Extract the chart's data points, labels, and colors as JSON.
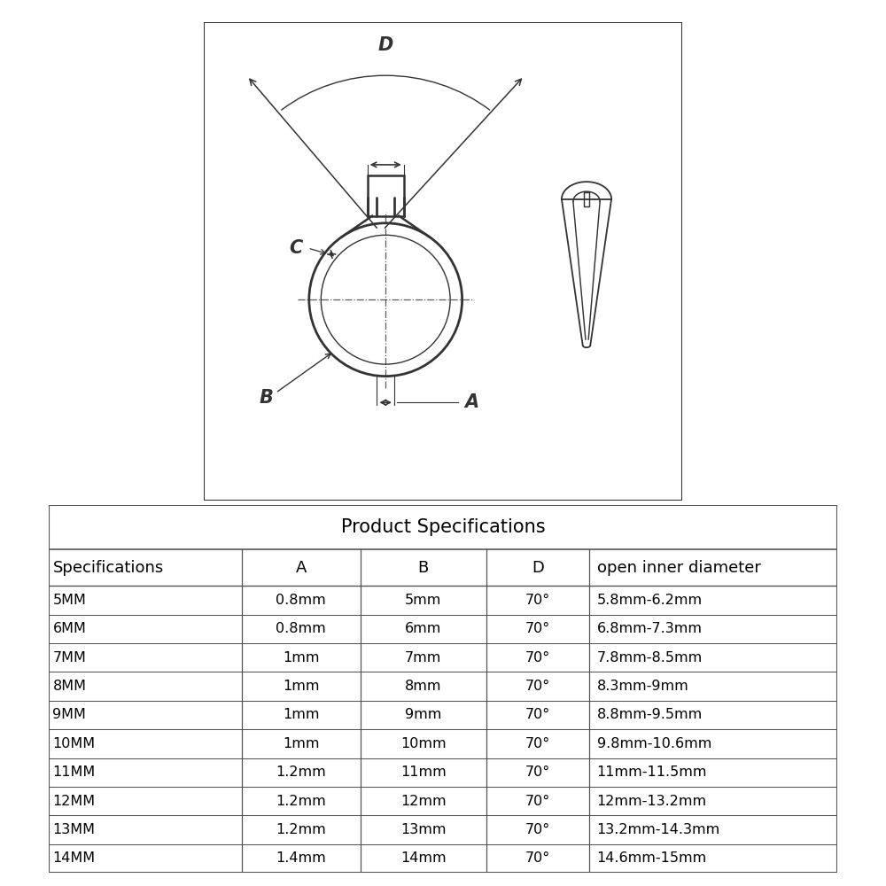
{
  "bg_color": "#ffffff",
  "diagram_bg": "#d8d8d8",
  "line_color": "#333333",
  "table_line_color": "#555555",
  "title": "Product Specifications",
  "headers": [
    "Specifications",
    "A",
    "B",
    "D",
    "open inner diameter"
  ],
  "col_align": [
    "left",
    "center",
    "center",
    "center",
    "left"
  ],
  "rows": [
    [
      "5MM",
      "0.8mm",
      "5mm",
      "70°",
      "5.8mm-6.2mm"
    ],
    [
      "6MM",
      "0.8mm",
      "6mm",
      "70°",
      "6.8mm-7.3mm"
    ],
    [
      "7MM",
      "1mm",
      "7mm",
      "70°",
      "7.8mm-8.5mm"
    ],
    [
      "8MM",
      "1mm",
      "8mm",
      "70°",
      "8.3mm-9mm"
    ],
    [
      "9MM",
      "1mm",
      "9mm",
      "70°",
      "8.8mm-9.5mm"
    ],
    [
      "10MM",
      "1mm",
      "10mm",
      "70°",
      "9.8mm-10.6mm"
    ],
    [
      "11MM",
      "1.2mm",
      "11mm",
      "70°",
      "11mm-11.5mm"
    ],
    [
      "12MM",
      "1.2mm",
      "12mm",
      "70°",
      "12mm-13.2mm"
    ],
    [
      "13MM",
      "1.2mm",
      "13mm",
      "70°",
      "13.2mm-14.3mm"
    ],
    [
      "14MM",
      "1.4mm",
      "14mm",
      "70°",
      "14.6mm-15mm"
    ]
  ],
  "label_fontsize": 14,
  "title_fontsize": 15,
  "table_fontsize": 11.5,
  "header_fontsize": 13
}
